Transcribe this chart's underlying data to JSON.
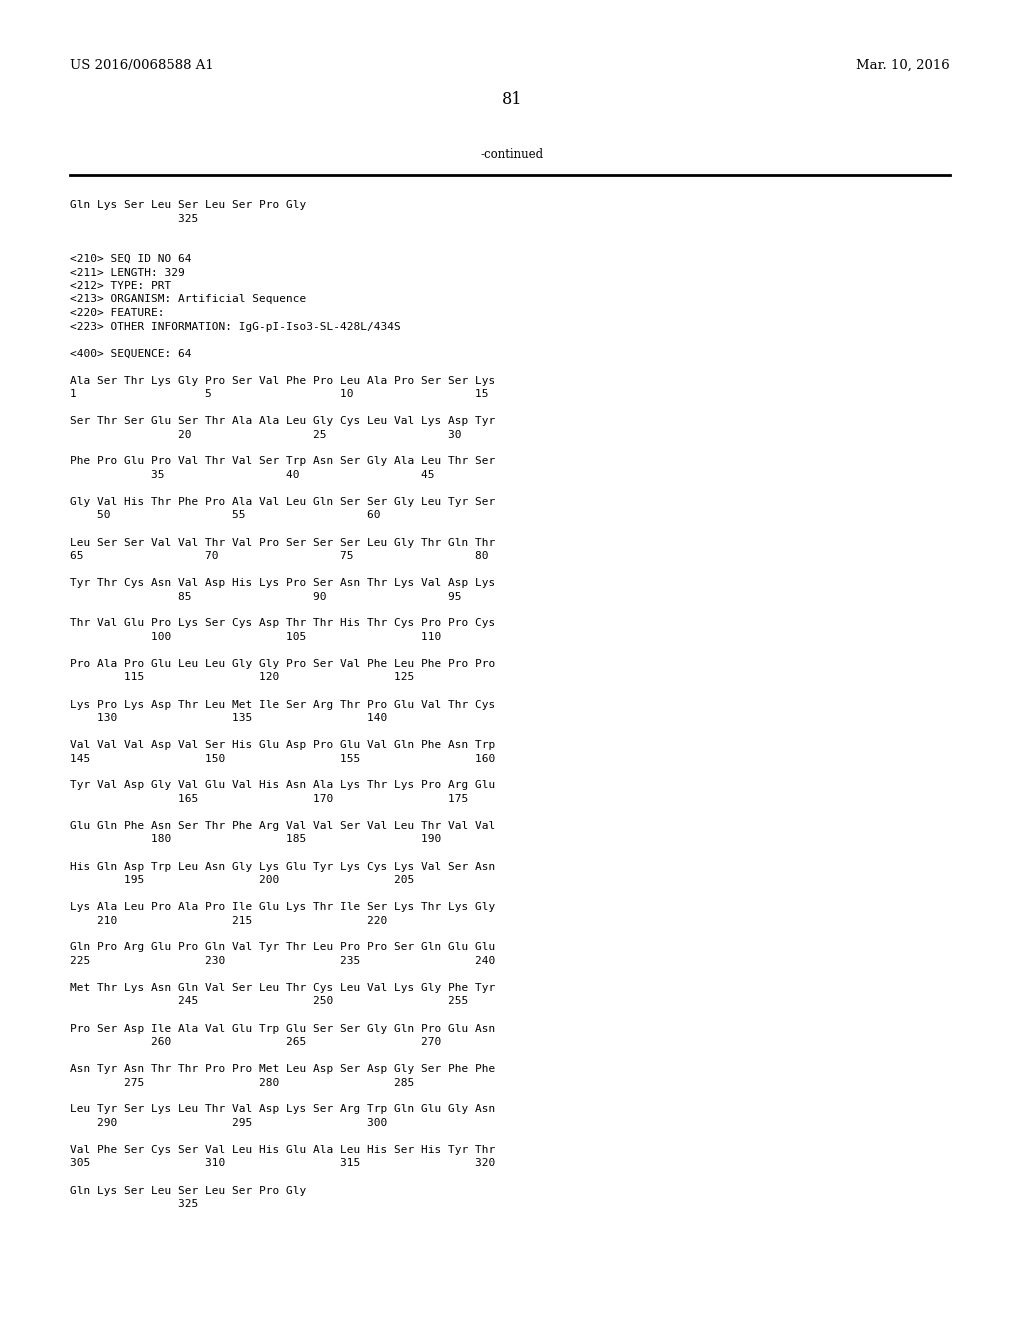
{
  "bg_color": "#ffffff",
  "header_left": "US 2016/0068588 A1",
  "header_right": "Mar. 10, 2016",
  "page_number": "81",
  "continued_label": "-continued",
  "font_size": 8.5,
  "mono_font": "DejaVu Sans Mono",
  "serif_font": "DejaVu Serif",
  "content_lines": [
    "Gln Lys Ser Leu Ser Leu Ser Pro Gly",
    "                325",
    "",
    "",
    "<210> SEQ ID NO 64",
    "<211> LENGTH: 329",
    "<212> TYPE: PRT",
    "<213> ORGANISM: Artificial Sequence",
    "<220> FEATURE:",
    "<223> OTHER INFORMATION: IgG-pI-Iso3-SL-428L/434S",
    "",
    "<400> SEQUENCE: 64",
    "",
    "Ala Ser Thr Lys Gly Pro Ser Val Phe Pro Leu Ala Pro Ser Ser Lys",
    "1                   5                   10                  15",
    "",
    "Ser Thr Ser Glu Ser Thr Ala Ala Leu Gly Cys Leu Val Lys Asp Tyr",
    "                20                  25                  30",
    "",
    "Phe Pro Glu Pro Val Thr Val Ser Trp Asn Ser Gly Ala Leu Thr Ser",
    "            35                  40                  45",
    "",
    "Gly Val His Thr Phe Pro Ala Val Leu Gln Ser Ser Gly Leu Tyr Ser",
    "    50                  55                  60",
    "",
    "Leu Ser Ser Val Val Thr Val Pro Ser Ser Ser Leu Gly Thr Gln Thr",
    "65                  70                  75                  80",
    "",
    "Tyr Thr Cys Asn Val Asp His Lys Pro Ser Asn Thr Lys Val Asp Lys",
    "                85                  90                  95",
    "",
    "Thr Val Glu Pro Lys Ser Cys Asp Thr Thr His Thr Cys Pro Pro Cys",
    "            100                 105                 110",
    "",
    "Pro Ala Pro Glu Leu Leu Gly Gly Pro Ser Val Phe Leu Phe Pro Pro",
    "        115                 120                 125",
    "",
    "Lys Pro Lys Asp Thr Leu Met Ile Ser Arg Thr Pro Glu Val Thr Cys",
    "    130                 135                 140",
    "",
    "Val Val Val Asp Val Ser His Glu Asp Pro Glu Val Gln Phe Asn Trp",
    "145                 150                 155                 160",
    "",
    "Tyr Val Asp Gly Val Glu Val His Asn Ala Lys Thr Lys Pro Arg Glu",
    "                165                 170                 175",
    "",
    "Glu Gln Phe Asn Ser Thr Phe Arg Val Val Ser Val Leu Thr Val Val",
    "            180                 185                 190",
    "",
    "His Gln Asp Trp Leu Asn Gly Lys Glu Tyr Lys Cys Lys Val Ser Asn",
    "        195                 200                 205",
    "",
    "Lys Ala Leu Pro Ala Pro Ile Glu Lys Thr Ile Ser Lys Thr Lys Gly",
    "    210                 215                 220",
    "",
    "Gln Pro Arg Glu Pro Gln Val Tyr Thr Leu Pro Pro Ser Gln Glu Glu",
    "225                 230                 235                 240",
    "",
    "Met Thr Lys Asn Gln Val Ser Leu Thr Cys Leu Val Lys Gly Phe Tyr",
    "                245                 250                 255",
    "",
    "Pro Ser Asp Ile Ala Val Glu Trp Glu Ser Ser Gly Gln Pro Glu Asn",
    "            260                 265                 270",
    "",
    "Asn Tyr Asn Thr Thr Pro Pro Met Leu Asp Ser Asp Gly Ser Phe Phe",
    "        275                 280                 285",
    "",
    "Leu Tyr Ser Lys Leu Thr Val Asp Lys Ser Arg Trp Gln Glu Gly Asn",
    "    290                 295                 300",
    "",
    "Val Phe Ser Cys Ser Val Leu His Glu Ala Leu His Ser His Tyr Thr",
    "305                 310                 315                 320",
    "",
    "Gln Lys Ser Leu Ser Leu Ser Pro Gly",
    "                325"
  ]
}
